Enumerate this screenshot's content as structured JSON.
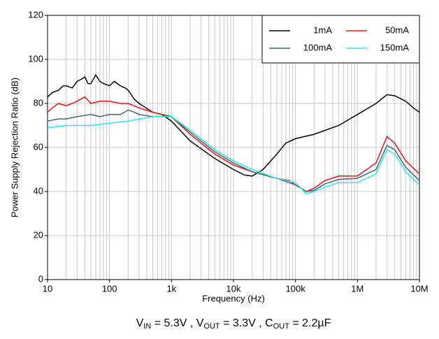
{
  "chart_data": {
    "type": "line",
    "xlabel": "Frequency (Hz)",
    "ylabel": "Power Supply Rejection Ratio (dB)",
    "caption": [
      "V",
      "IN",
      " = 5.3V , V",
      "OUT",
      " = 3.3V , C",
      "OUT",
      " = 2.2µF"
    ],
    "xscale": "log",
    "xlim": [
      10,
      10000000
    ],
    "xticks": [
      10,
      100,
      {
        "value": 1000,
        "label": "1k"
      },
      {
        "value": 10000,
        "label": "10k"
      },
      {
        "value": 100000,
        "label": "100k"
      },
      {
        "value": 1000000,
        "label": "1M"
      },
      {
        "value": 10000000,
        "label": "10M"
      }
    ],
    "ylim": [
      0,
      120
    ],
    "yticks": [
      0,
      20,
      40,
      60,
      80,
      100,
      120
    ],
    "grid": true,
    "legend": "top-right",
    "series": [
      {
        "name": "1mA",
        "color": "#000000",
        "x": [
          10,
          12,
          15,
          18,
          20,
          25,
          30,
          35,
          40,
          45,
          50,
          60,
          70,
          80,
          100,
          120,
          150,
          180,
          200,
          250,
          300,
          500,
          700,
          1000,
          2000,
          5000,
          10000,
          15000,
          20000,
          30000,
          50000,
          70000,
          100000,
          200000,
          500000,
          1000000,
          2000000,
          3000000,
          4000000,
          6000000,
          8000000,
          10000000
        ],
        "values": [
          83,
          85,
          86,
          88,
          88,
          87,
          90,
          91,
          92,
          89,
          89,
          93,
          90,
          89,
          88,
          90,
          88,
          87,
          86,
          82,
          80,
          76,
          75,
          72,
          63,
          55,
          50,
          47.5,
          47,
          50,
          57,
          62,
          64,
          66,
          70,
          75,
          80,
          84,
          83.5,
          81,
          78,
          76
        ]
      },
      {
        "name": "50mA",
        "color": "#e8141b",
        "x": [
          10,
          12,
          15,
          20,
          25,
          30,
          40,
          50,
          70,
          100,
          150,
          200,
          300,
          500,
          1000,
          2000,
          5000,
          10000,
          20000,
          50000,
          80000,
          100000,
          150000,
          200000,
          300000,
          500000,
          1000000,
          2000000,
          3000000,
          4000000,
          6000000,
          10000000
        ],
        "values": [
          76,
          78,
          80,
          79,
          80,
          81,
          83,
          80,
          81,
          81,
          80,
          80,
          78,
          76,
          74,
          66,
          57,
          52,
          49,
          46,
          45,
          43,
          40,
          41.5,
          45,
          47,
          47,
          53,
          65,
          62,
          54,
          48
        ]
      },
      {
        "name": "100mA",
        "color": "#44676b",
        "x": [
          10,
          15,
          20,
          30,
          50,
          70,
          100,
          150,
          200,
          250,
          300,
          500,
          1000,
          2000,
          5000,
          10000,
          20000,
          50000,
          100000,
          150000,
          200000,
          300000,
          500000,
          1000000,
          2000000,
          3000000,
          4000000,
          6000000,
          10000000
        ],
        "values": [
          72,
          73,
          73,
          74,
          75,
          74,
          75,
          75,
          77,
          76,
          75,
          74,
          74,
          67,
          58,
          53,
          49,
          46,
          43,
          40,
          40.5,
          43.5,
          45.5,
          46,
          50,
          61,
          59,
          51,
          45
        ]
      },
      {
        "name": "150mA",
        "color": "#2ee6ef",
        "x": [
          10,
          20,
          50,
          100,
          200,
          500,
          1000,
          2000,
          5000,
          10000,
          20000,
          50000,
          100000,
          150000,
          200000,
          300000,
          500000,
          1000000,
          2000000,
          3000000,
          4000000,
          6000000,
          10000000
        ],
        "values": [
          69,
          70,
          70,
          71,
          72,
          74,
          74,
          68,
          59,
          54,
          50,
          46,
          44,
          39,
          40,
          42,
          44,
          44,
          48,
          59,
          57,
          49,
          43
        ]
      }
    ]
  }
}
